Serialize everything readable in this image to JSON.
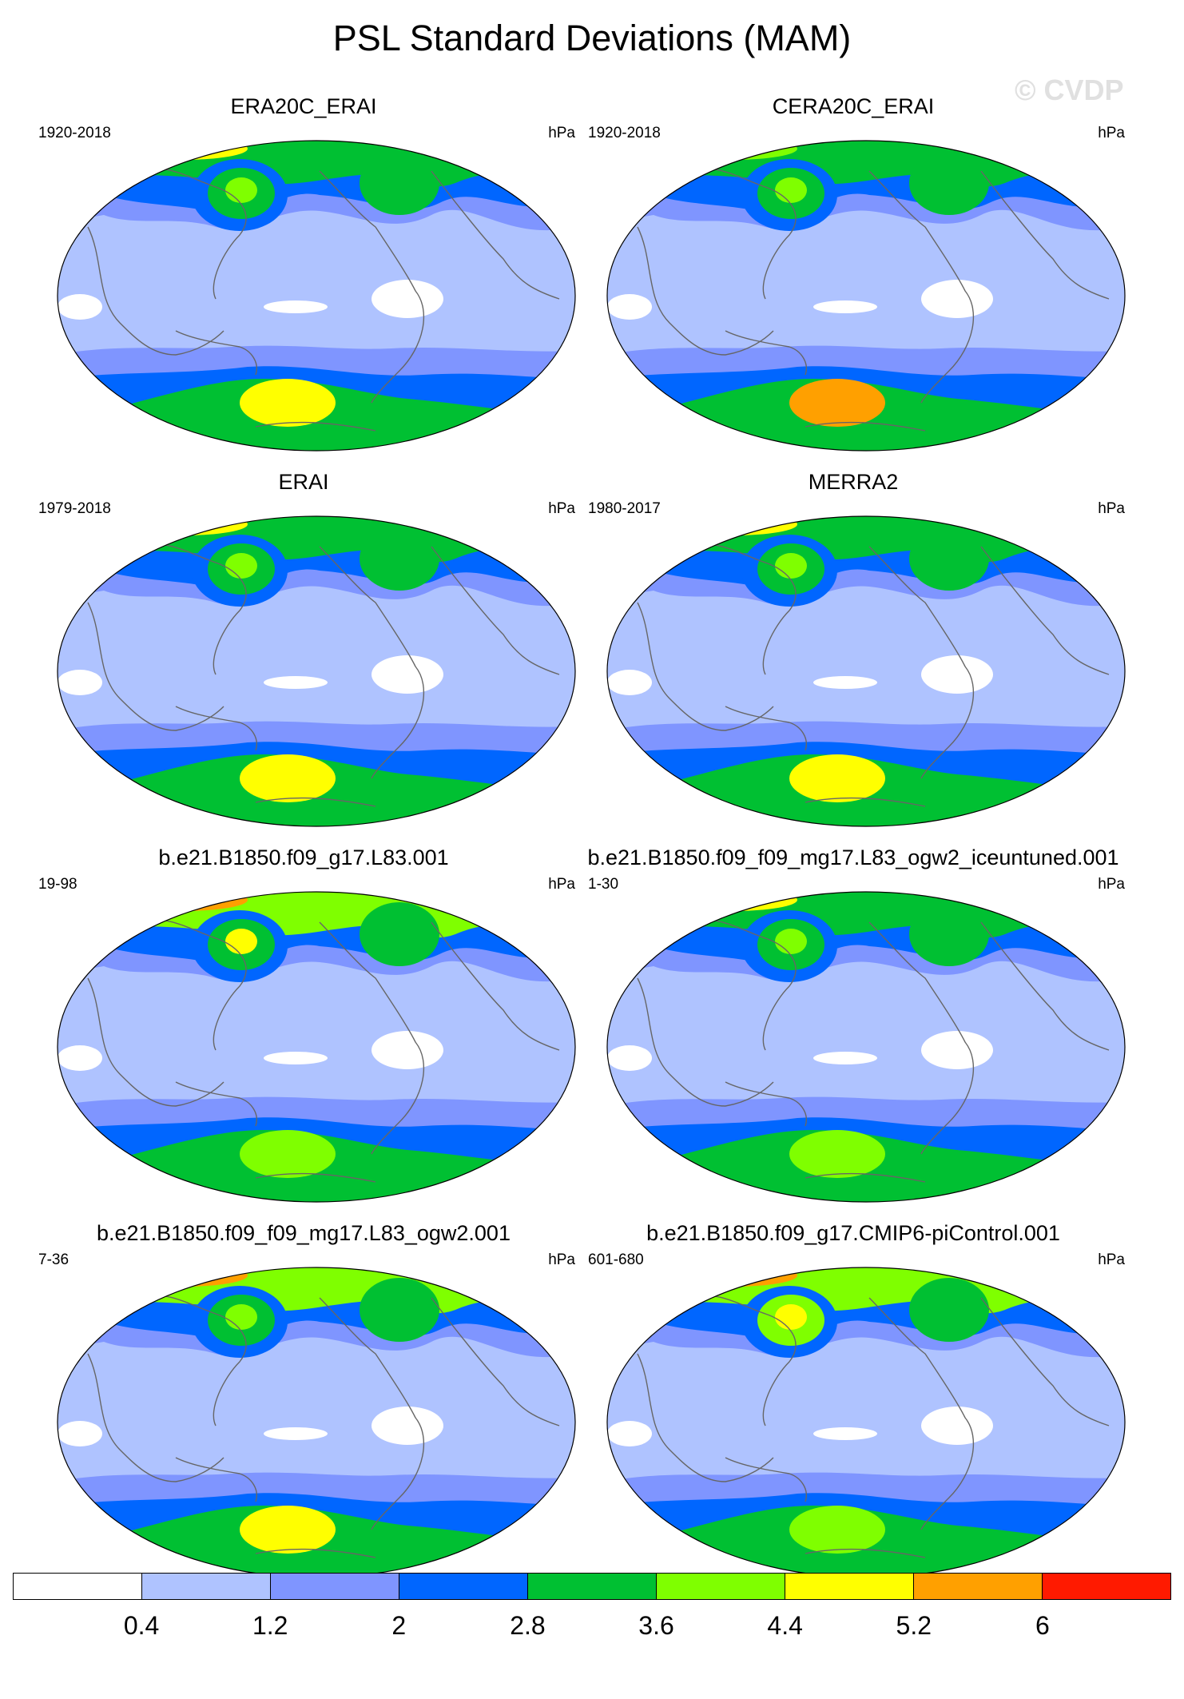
{
  "title": "PSL Standard Deviations (MAM)",
  "watermark": "© CVDP",
  "panels": [
    {
      "title": "ERA20C_ERAI",
      "years": "1920-2018",
      "units": "hPa",
      "colors": {
        "bg": "#afc3ff",
        "arctic": "#00c032",
        "arctic_hi": "#ffff00",
        "pac": "#0066ff",
        "pac_core": "#00c032",
        "pac_hi": "#7fff00",
        "atl": "#00c032",
        "so": "#0066ff",
        "so_in": "#00c032",
        "so_hi": "#ffff00",
        "white": true,
        "top_hot": "#ffff00"
      }
    },
    {
      "title": "CERA20C_ERAI",
      "years": "1920-2018",
      "units": "hPa",
      "colors": {
        "bg": "#afc3ff",
        "arctic": "#00c032",
        "arctic_hi": "#7fff00",
        "pac": "#0066ff",
        "pac_core": "#00c032",
        "pac_hi": "#7fff00",
        "atl": "#00c032",
        "so": "#0066ff",
        "so_in": "#00c032",
        "so_hi": "#ffa000",
        "white": true,
        "top_hot": "#7fff00"
      }
    },
    {
      "title": "ERAI",
      "years": "1979-2018",
      "units": "hPa",
      "colors": {
        "bg": "#afc3ff",
        "arctic": "#00c032",
        "arctic_hi": "#ffff00",
        "pac": "#0066ff",
        "pac_core": "#00c032",
        "pac_hi": "#7fff00",
        "atl": "#00c032",
        "so": "#0066ff",
        "so_in": "#00c032",
        "so_hi": "#ffff00",
        "white": true,
        "top_hot": "#ffff00"
      }
    },
    {
      "title": "MERRA2",
      "years": "1980-2017",
      "units": "hPa",
      "colors": {
        "bg": "#afc3ff",
        "arctic": "#00c032",
        "arctic_hi": "#ffff00",
        "pac": "#0066ff",
        "pac_core": "#00c032",
        "pac_hi": "#7fff00",
        "atl": "#00c032",
        "so": "#0066ff",
        "so_in": "#00c032",
        "so_hi": "#ffff00",
        "white": true,
        "top_hot": "#ffff00"
      }
    },
    {
      "title": "b.e21.B1850.f09_g17.L83.001",
      "years": "19-98",
      "units": "hPa",
      "colors": {
        "bg": "#afc3ff",
        "arctic": "#7fff00",
        "arctic_hi": "#ffa000",
        "pac": "#0066ff",
        "pac_core": "#00c032",
        "pac_hi": "#ffff00",
        "atl": "#00c032",
        "so": "#0066ff",
        "so_in": "#00c032",
        "so_hi": "#7fff00",
        "white": true,
        "top_hot": "#ff1a00"
      }
    },
    {
      "title": "b.e21.B1850.f09_f09_mg17.L83_ogw2_iceuntuned.001",
      "years": "1-30",
      "units": "hPa",
      "colors": {
        "bg": "#afc3ff",
        "arctic": "#00c032",
        "arctic_hi": "#ffff00",
        "pac": "#0066ff",
        "pac_core": "#00c032",
        "pac_hi": "#7fff00",
        "atl": "#00c032",
        "so": "#0066ff",
        "so_in": "#00c032",
        "so_hi": "#7fff00",
        "white": true,
        "top_hot": "#ffa000"
      }
    },
    {
      "title": "b.e21.B1850.f09_f09_mg17.L83_ogw2.001",
      "years": "7-36",
      "units": "hPa",
      "colors": {
        "bg": "#afc3ff",
        "arctic": "#7fff00",
        "arctic_hi": "#ffa000",
        "pac": "#0066ff",
        "pac_core": "#00c032",
        "pac_hi": "#7fff00",
        "atl": "#00c032",
        "so": "#0066ff",
        "so_in": "#00c032",
        "so_hi": "#ffff00",
        "white": true,
        "top_hot": "#ff1a00"
      }
    },
    {
      "title": "b.e21.B1850.f09_g17.CMIP6-piControl.001",
      "years": "601-680",
      "units": "hPa",
      "colors": {
        "bg": "#afc3ff",
        "arctic": "#7fff00",
        "arctic_hi": "#ffa000",
        "pac": "#0066ff",
        "pac_core": "#7fff00",
        "pac_hi": "#ffff00",
        "atl": "#00c032",
        "so": "#0066ff",
        "so_in": "#00c032",
        "so_hi": "#7fff00",
        "white": true,
        "top_hot": "#ff1a00"
      }
    }
  ],
  "colorbar": {
    "colors": [
      "#ffffff",
      "#afc3ff",
      "#7f95ff",
      "#0066ff",
      "#00c032",
      "#7fff00",
      "#ffff00",
      "#ffa000",
      "#ff1a00"
    ],
    "labels": [
      "0.4",
      "1.2",
      "2",
      "2.8",
      "3.6",
      "4.4",
      "5.2",
      "6"
    ]
  }
}
